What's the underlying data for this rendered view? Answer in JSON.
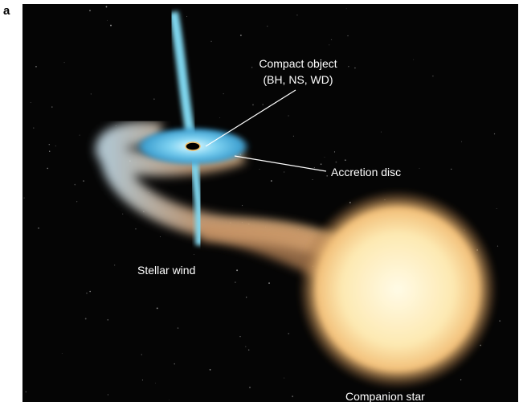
{
  "panel_label": "a",
  "annotations": {
    "compact_object": [
      "Compact object",
      "(BH, NS, WD)"
    ],
    "accretion_disc": "Accretion disc",
    "stellar_wind": "Stellar wind",
    "companion_star": "Companion star"
  }
}
